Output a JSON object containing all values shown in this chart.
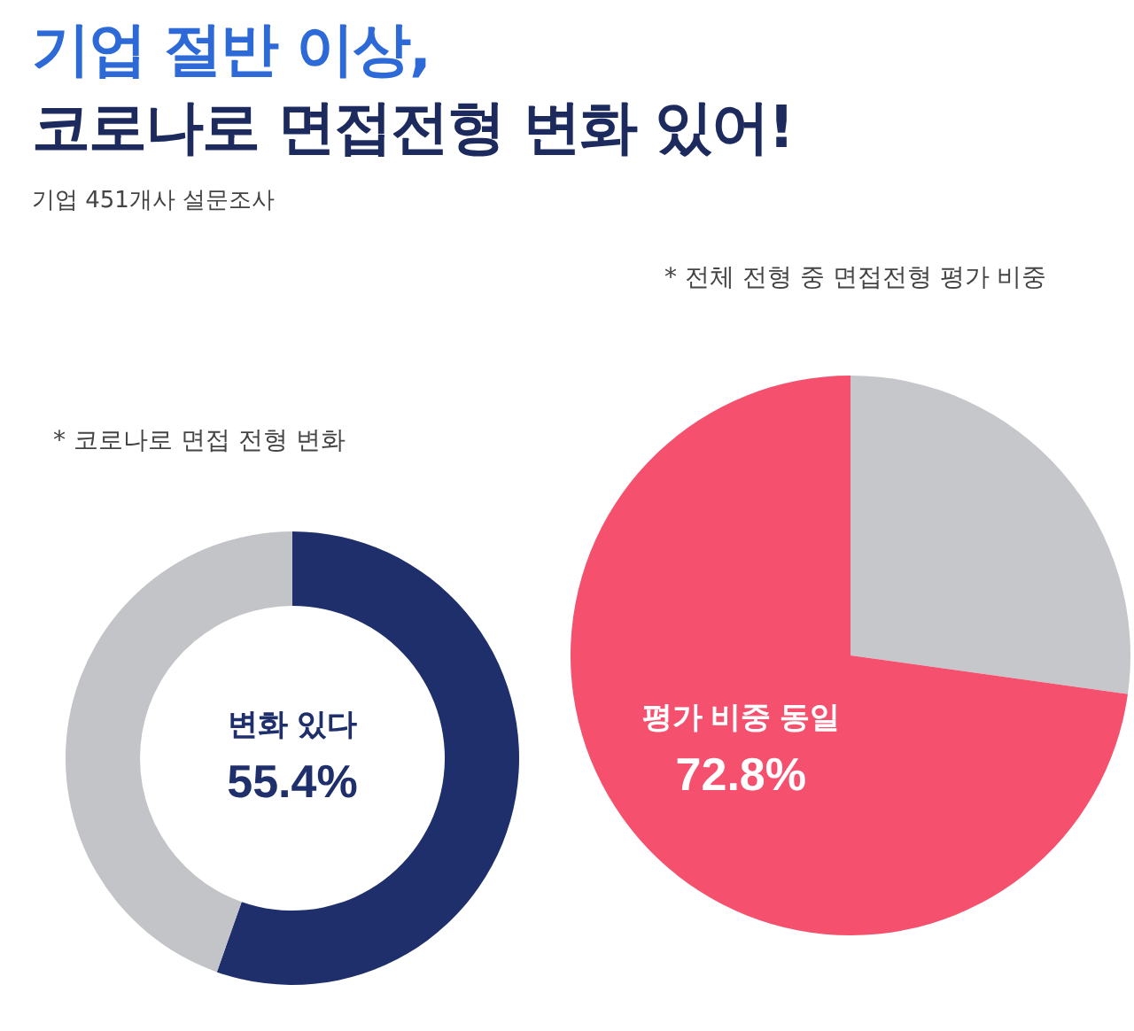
{
  "chart_data": [
    {
      "type": "donut",
      "title": "기업 절반 이상,\n코로나로 면접전형 변화 있어!",
      "subtitle": "기업 451개사 설문조사",
      "annotations": [
        "* 코로나로 면접 전형 변화"
      ],
      "categories": [
        "변화 있다",
        null
      ],
      "values": [
        55.4,
        44.6
      ],
      "colors": [
        "#1e2f6b",
        "#c3c4c8"
      ],
      "value_labels": [
        "55.4%",
        null
      ]
    },
    {
      "type": "pie",
      "annotations": [
        "* 전체 전형 중 면접전형 평가 비중"
      ],
      "categories": [
        null,
        "평가 비중 동일"
      ],
      "values": [
        27.2,
        72.8
      ],
      "colors": [
        "#c6c7cb",
        "#f5506e"
      ],
      "value_labels": [
        null,
        "72.8%"
      ]
    }
  ]
}
